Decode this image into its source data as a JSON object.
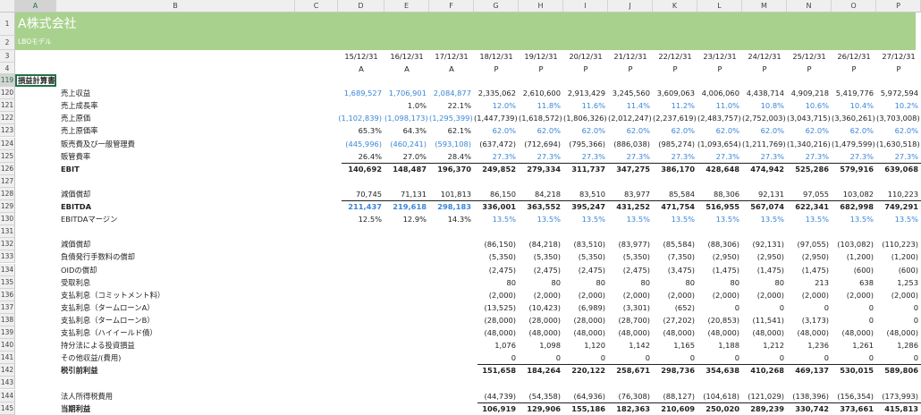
{
  "header": {
    "title": "A株式会社",
    "subtitle": "LBOモデル"
  },
  "columns": [
    "A",
    "B",
    "C",
    "D",
    "E",
    "F",
    "G",
    "H",
    "I",
    "J",
    "K",
    "L",
    "M",
    "N",
    "O",
    "P"
  ],
  "row_numbers": [
    1,
    2,
    3,
    4,
    119,
    120,
    121,
    122,
    123,
    124,
    125,
    126,
    127,
    128,
    129,
    130,
    131,
    132,
    133,
    134,
    135,
    136,
    137,
    138,
    139,
    140,
    141,
    142,
    143,
    144,
    145
  ],
  "dates": [
    "15/12/31",
    "16/12/31",
    "17/12/31",
    "18/12/31",
    "19/12/31",
    "20/12/31",
    "21/12/31",
    "22/12/31",
    "23/12/31",
    "24/12/31",
    "25/12/31",
    "26/12/31",
    "27/12/31"
  ],
  "types": [
    "A",
    "A",
    "A",
    "P",
    "P",
    "P",
    "P",
    "P",
    "P",
    "P",
    "P",
    "P",
    "P"
  ],
  "section": "損益計算書",
  "rows": [
    {
      "label": "売上収益",
      "cells": [
        "1,689,527",
        "1,706,901",
        "2,084,877",
        "2,335,062",
        "2,610,600",
        "2,913,429",
        "3,245,560",
        "3,609,063",
        "4,006,060",
        "4,438,714",
        "4,909,218",
        "5,419,776",
        "5,972,594"
      ]
    },
    {
      "label": "売上成長率",
      "cells": [
        null,
        "1.0%",
        "22.1%",
        "12.0%",
        "11.8%",
        "11.6%",
        "11.4%",
        "11.2%",
        "11.0%",
        "10.8%",
        "10.6%",
        "10.4%",
        "10.2%"
      ]
    },
    {
      "label": "売上原価",
      "cells": [
        "(1,102,839)",
        "(1,098,173)",
        "(1,295,399)",
        "(1,447,739)",
        "(1,618,572)",
        "(1,806,326)",
        "(2,012,247)",
        "(2,237,619)",
        "(2,483,757)",
        "(2,752,003)",
        "(3,043,715)",
        "(3,360,261)",
        "(3,703,008)"
      ]
    },
    {
      "label": "売上原価率",
      "cells": [
        "65.3%",
        "64.3%",
        "62.1%",
        "62.0%",
        "62.0%",
        "62.0%",
        "62.0%",
        "62.0%",
        "62.0%",
        "62.0%",
        "62.0%",
        "62.0%",
        "62.0%"
      ]
    },
    {
      "label": "販売費及び一般管理費",
      "cells": [
        "(445,996)",
        "(460,241)",
        "(593,108)",
        "(637,472)",
        "(712,694)",
        "(795,366)",
        "(886,038)",
        "(985,274)",
        "(1,093,654)",
        "(1,211,769)",
        "(1,340,216)",
        "(1,479,599)",
        "(1,630,518)"
      ]
    },
    {
      "label": "販管費率",
      "cells": [
        "26.4%",
        "27.0%",
        "28.4%",
        "27.3%",
        "27.3%",
        "27.3%",
        "27.3%",
        "27.3%",
        "27.3%",
        "27.3%",
        "27.3%",
        "27.3%",
        "27.3%"
      ]
    },
    {
      "label": "EBIT",
      "cells": [
        "140,692",
        "148,487",
        "196,370",
        "249,852",
        "279,334",
        "311,737",
        "347,275",
        "386,170",
        "428,648",
        "474,942",
        "525,286",
        "579,916",
        "639,068"
      ]
    },
    {
      "label": null,
      "cells": null
    },
    {
      "label": "減価償却",
      "cells": [
        "70,745",
        "71,131",
        "101,813",
        "86,150",
        "84,218",
        "83,510",
        "83,977",
        "85,584",
        "88,306",
        "92,131",
        "97,055",
        "103,082",
        "110,223"
      ]
    },
    {
      "label": "EBITDA",
      "cells": [
        "211,437",
        "219,618",
        "298,183",
        "336,001",
        "363,552",
        "395,247",
        "431,252",
        "471,754",
        "516,955",
        "567,074",
        "622,341",
        "682,998",
        "749,291"
      ]
    },
    {
      "label": "EBITDAマージン",
      "cells": [
        "12.5%",
        "12.9%",
        "14.3%",
        "13.5%",
        "13.5%",
        "13.5%",
        "13.5%",
        "13.5%",
        "13.5%",
        "13.5%",
        "13.5%",
        "13.5%",
        "13.5%"
      ]
    },
    {
      "label": null,
      "cells": null
    },
    {
      "label": "減価償却",
      "cells": [
        null,
        null,
        null,
        "(86,150)",
        "(84,218)",
        "(83,510)",
        "(83,977)",
        "(85,584)",
        "(88,306)",
        "(92,131)",
        "(97,055)",
        "(103,082)",
        "(110,223)"
      ]
    },
    {
      "label": "負債発行手数料の償却",
      "cells": [
        null,
        null,
        null,
        "(5,350)",
        "(5,350)",
        "(5,350)",
        "(5,350)",
        "(7,350)",
        "(2,950)",
        "(2,950)",
        "(2,950)",
        "(1,200)",
        "(1,200)"
      ]
    },
    {
      "label": "OIDの償却",
      "cells": [
        null,
        null,
        null,
        "(2,475)",
        "(2,475)",
        "(2,475)",
        "(2,475)",
        "(3,475)",
        "(1,475)",
        "(1,475)",
        "(1,475)",
        "(600)",
        "(600)"
      ]
    },
    {
      "label": "受取利息",
      "cells": [
        null,
        null,
        null,
        "80",
        "80",
        "80",
        "80",
        "80",
        "80",
        "80",
        "213",
        "638",
        "1,253"
      ]
    },
    {
      "label": "支払利息（コミットメント料）",
      "cells": [
        null,
        null,
        null,
        "(2,000)",
        "(2,000)",
        "(2,000)",
        "(2,000)",
        "(2,000)",
        "(2,000)",
        "(2,000)",
        "(2,000)",
        "(2,000)",
        "(2,000)"
      ]
    },
    {
      "label": "支払利息（タームローンA）",
      "cells": [
        null,
        null,
        null,
        "(13,525)",
        "(10,423)",
        "(6,989)",
        "(3,301)",
        "(652)",
        "0",
        "0",
        "0",
        "0",
        "0"
      ]
    },
    {
      "label": "支払利息（タームローンB）",
      "cells": [
        null,
        null,
        null,
        "(28,000)",
        "(28,000)",
        "(28,000)",
        "(28,700)",
        "(27,202)",
        "(20,853)",
        "(11,541)",
        "(3,173)",
        "0",
        "0"
      ]
    },
    {
      "label": "支払利息（ハイイールド債）",
      "cells": [
        null,
        null,
        null,
        "(48,000)",
        "(48,000)",
        "(48,000)",
        "(48,000)",
        "(48,000)",
        "(48,000)",
        "(48,000)",
        "(48,000)",
        "(48,000)",
        "(48,000)"
      ]
    },
    {
      "label": "持分法による投資損益",
      "cells": [
        null,
        null,
        null,
        "1,076",
        "1,098",
        "1,120",
        "1,142",
        "1,165",
        "1,188",
        "1,212",
        "1,236",
        "1,261",
        "1,286"
      ]
    },
    {
      "label": "その他収益/(費用)",
      "cells": [
        null,
        null,
        null,
        "0",
        "0",
        "0",
        "0",
        "0",
        "0",
        "0",
        "0",
        "0",
        "0"
      ]
    },
    {
      "label": "税引前利益",
      "cells": [
        null,
        null,
        null,
        "151,658",
        "184,264",
        "220,122",
        "258,671",
        "298,736",
        "354,638",
        "410,268",
        "469,137",
        "530,015",
        "589,806"
      ]
    },
    {
      "label": null,
      "cells": null
    },
    {
      "label": "法人所得税費用",
      "cells": [
        null,
        null,
        null,
        "(44,739)",
        "(54,358)",
        "(64,936)",
        "(76,308)",
        "(88,127)",
        "(104,618)",
        "(121,029)",
        "(138,396)",
        "(156,354)",
        "(173,993)"
      ]
    },
    {
      "label": "当期利益",
      "cells": [
        null,
        null,
        null,
        "106,919",
        "129,906",
        "155,186",
        "182,363",
        "210,609",
        "250,020",
        "289,239",
        "330,742",
        "373,661",
        "415,813"
      ]
    }
  ]
}
